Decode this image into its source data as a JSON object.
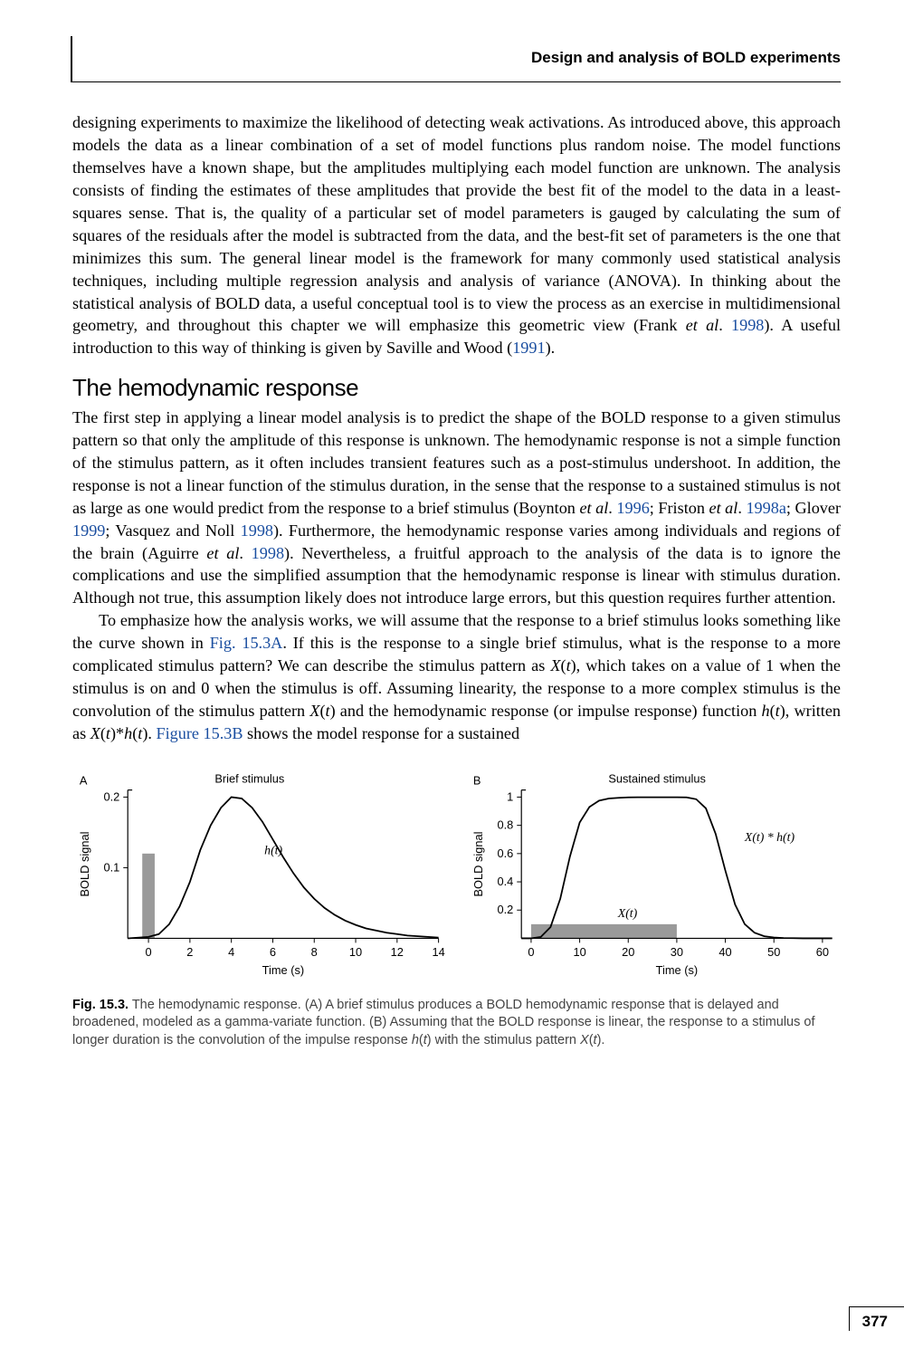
{
  "header": {
    "running_title": "Design and analysis of BOLD experiments"
  },
  "page_number": "377",
  "paragraphs": {
    "p1_before_cite": "designing experiments to maximize the likelihood of detecting weak activations. As introduced above, this approach models the data as a linear combination of a set of model functions plus random noise. The model functions themselves have a known shape, but the amplitudes multiplying each model function are unknown. The analysis consists of finding the estimates of these amplitudes that provide the best fit of the model to the data in a least-squares sense. That is, the quality of a particular set of model parameters is gauged by calculating the sum of squares of the residuals after the model is subtracted from the data, and the best-fit set of parameters is the one that minimizes this sum. The general linear model is the framework for many commonly used statistical analysis techniques, including multiple regression analysis and analysis of variance (ANOVA). In thinking about the statistical analysis of BOLD data, a useful conceptual tool is to view the process as an exercise in multidimensional geometry, and throughout this chapter we will emphasize this geometric view (Frank ",
    "p1_etal": "et al",
    "p1_dot": ". ",
    "p1_cite1": "1998",
    "p1_after_cite1": "). A useful introduction to this way of thinking is given by Saville and Wood (",
    "p1_cite2": "1991",
    "p1_end": ")."
  },
  "section_heading": "The hemodynamic response",
  "p2": {
    "t1": "The first step in applying a linear model analysis is to predict the shape of the BOLD response to a given stimulus pattern so that only the amplitude of this response is unknown. The hemodynamic response is not a simple function of the stimulus pattern, as it often includes transient features such as a post-stimulus undershoot. In addition, the response is not a linear function of the stimulus duration, in the sense that the response to a sustained stimulus is not as large as one would predict from the response to a brief stimulus (Boynton ",
    "etal1": "et al",
    "dot1": ". ",
    "c1": "1996",
    "t2": "; Friston ",
    "etal2": "et al",
    "dot2": ". ",
    "c2": "1998a",
    "t3": "; Glover ",
    "c3": "1999",
    "t4": "; Vasquez and Noll ",
    "c4": "1998",
    "t5": "). Furthermore, the hemodynamic response varies among individuals and regions of the brain (Aguirre ",
    "etal3": "et al",
    "dot3": ". ",
    "c5": "1998",
    "t6": "). Nevertheless, a fruitful approach to the analysis of the data is to ignore the complications and use the simplified assumption that the hemodynamic response is linear with stimulus duration. Although not true, this assumption likely does not introduce large errors, but this question requires further attention."
  },
  "p3": {
    "t1": "To emphasize how the analysis works, we will assume that the response to a brief stimulus looks something like the curve shown in ",
    "fig1": "Fig. 15.3A",
    "t2": ". If this is the response to a single brief stimulus, what is the response to a more complicated stimulus pattern? We can describe the stimulus pattern as ",
    "xt1": "X",
    "t3": "(",
    "tvar1": "t",
    "t4": "), which takes on a value of 1 when the stimulus is on and 0 when the stimulus is off. Assuming linearity, the response to a more complex stimulus is the convolution of the stimulus pattern ",
    "xt2": "X",
    "t5": "(",
    "tvar2": "t",
    "t6": ") and the hemodynamic response (or impulse response) function ",
    "hvar": "h",
    "t7": "(",
    "tvar3": "t",
    "t8": "), written as ",
    "xt3": "X",
    "t9": "(",
    "tvar4": "t",
    "t10": ")*",
    "hvar2": "h",
    "t11": "(",
    "tvar5": "t",
    "t12": "). ",
    "fig2": "Figure 15.3B",
    "t13": " shows the model response for a sustained"
  },
  "figure": {
    "caption_bold": "Fig. 15.3.",
    "caption_rest_1": " The hemodynamic response. (A) A brief stimulus produces a BOLD hemodynamic response that is delayed and broadened, modeled as a gamma-variate function. (B) Assuming that the BOLD response is linear, the response to a stimulus of longer duration is the convolution of the impulse response ",
    "caption_h": "h",
    "caption_paren1": "(",
    "caption_t1": "t",
    "caption_paren2": ")",
    "caption_rest_2": " with the stimulus pattern ",
    "caption_x": "X",
    "caption_paren3": "(",
    "caption_t2": "t",
    "caption_paren4": ").",
    "chartA": {
      "label": "A",
      "title": "Brief stimulus",
      "ylabel": "BOLD signal",
      "xlabel": "Time (s)",
      "curve_label": "h(t)",
      "xticks": [
        0,
        2,
        4,
        6,
        8,
        10,
        12,
        14
      ],
      "yticks": [
        0.1,
        0.2
      ],
      "xlim": [
        -1,
        14
      ],
      "ylim": [
        0,
        0.21
      ],
      "hrf_points": [
        [
          -1,
          0
        ],
        [
          0,
          0.002
        ],
        [
          0.5,
          0.006
        ],
        [
          1,
          0.02
        ],
        [
          1.5,
          0.045
        ],
        [
          2,
          0.08
        ],
        [
          2.5,
          0.125
        ],
        [
          3,
          0.16
        ],
        [
          3.5,
          0.185
        ],
        [
          4,
          0.2
        ],
        [
          4.5,
          0.198
        ],
        [
          5,
          0.185
        ],
        [
          5.5,
          0.165
        ],
        [
          6,
          0.14
        ],
        [
          6.5,
          0.115
        ],
        [
          7,
          0.092
        ],
        [
          7.5,
          0.072
        ],
        [
          8,
          0.056
        ],
        [
          8.5,
          0.043
        ],
        [
          9,
          0.033
        ],
        [
          9.5,
          0.025
        ],
        [
          10,
          0.019
        ],
        [
          10.5,
          0.014
        ],
        [
          11,
          0.011
        ],
        [
          11.5,
          0.008
        ],
        [
          12,
          0.006
        ],
        [
          12.5,
          0.004
        ],
        [
          13,
          0.003
        ],
        [
          13.5,
          0.002
        ],
        [
          14,
          0.001
        ]
      ],
      "stim_x": [
        -0.3,
        0.3
      ],
      "stim_height": 0.12,
      "line_color": "#000000",
      "stim_color": "#9a9a9a",
      "axis_color": "#000000"
    },
    "chartB": {
      "label": "B",
      "title": "Sustained stimulus",
      "ylabel": "BOLD signal",
      "xlabel": "Time (s)",
      "curve_label": "X(t) * h(t)",
      "xt_label": "X(t)",
      "xticks": [
        0,
        10,
        20,
        30,
        40,
        50,
        60
      ],
      "yticks": [
        0.2,
        0.4,
        0.6,
        0.8,
        1
      ],
      "xlim": [
        -2,
        62
      ],
      "ylim": [
        0,
        1.05
      ],
      "conv_points": [
        [
          -2,
          0
        ],
        [
          0,
          0
        ],
        [
          2,
          0.01
        ],
        [
          4,
          0.08
        ],
        [
          6,
          0.28
        ],
        [
          8,
          0.58
        ],
        [
          10,
          0.82
        ],
        [
          12,
          0.93
        ],
        [
          14,
          0.975
        ],
        [
          16,
          0.99
        ],
        [
          18,
          0.995
        ],
        [
          20,
          0.998
        ],
        [
          22,
          0.999
        ],
        [
          24,
          0.999
        ],
        [
          26,
          0.999
        ],
        [
          28,
          0.999
        ],
        [
          30,
          0.999
        ],
        [
          32,
          0.998
        ],
        [
          34,
          0.985
        ],
        [
          36,
          0.92
        ],
        [
          38,
          0.74
        ],
        [
          40,
          0.48
        ],
        [
          42,
          0.24
        ],
        [
          44,
          0.1
        ],
        [
          46,
          0.04
        ],
        [
          48,
          0.015
        ],
        [
          50,
          0.006
        ],
        [
          52,
          0.002
        ],
        [
          54,
          0.001
        ],
        [
          56,
          0
        ],
        [
          58,
          0
        ],
        [
          60,
          0
        ],
        [
          62,
          0
        ]
      ],
      "stim_x": [
        0,
        30
      ],
      "stim_height": 0.1,
      "line_color": "#000000",
      "stim_color": "#9a9a9a",
      "axis_color": "#000000"
    }
  }
}
